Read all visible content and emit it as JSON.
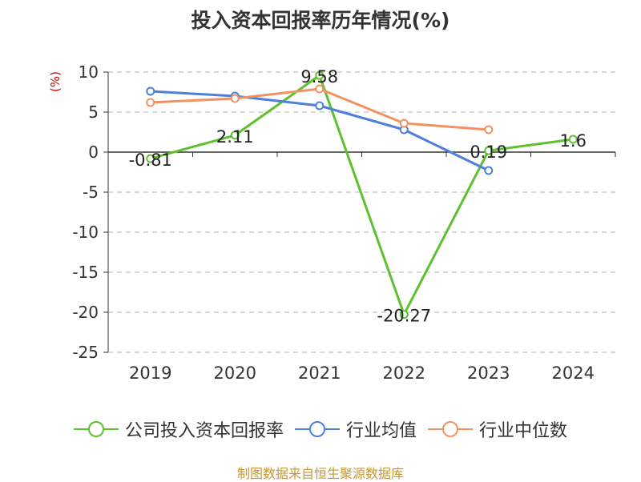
{
  "chart_data": {
    "type": "line",
    "title": "投入资本回报率历年情况(%)",
    "ylabel": "(%)",
    "categories": [
      "2019",
      "2020",
      "2021",
      "2022",
      "2023",
      "2024"
    ],
    "ylim": [
      -25,
      10
    ],
    "yticks": [
      10,
      5,
      0,
      -5,
      -10,
      -15,
      -20,
      -25
    ],
    "grid": true,
    "legend_position": "bottom",
    "series": [
      {
        "name": "公司投入资本回报率",
        "color": "#5dc12e",
        "values": [
          -0.81,
          2.11,
          9.58,
          -20.27,
          0.19,
          1.6
        ],
        "labels": [
          "-0.81",
          "2.11",
          "9.58",
          "-20.27",
          "0.19",
          "1.6"
        ]
      },
      {
        "name": "行业均值",
        "color": "#4e7fdb",
        "values": [
          7.6,
          7.0,
          5.8,
          2.8,
          -2.3,
          null
        ]
      },
      {
        "name": "行业中位数",
        "color": "#f29263",
        "values": [
          6.2,
          6.7,
          7.9,
          3.6,
          2.8,
          null
        ]
      }
    ]
  },
  "source": "制图数据来自恒生聚源数据库"
}
